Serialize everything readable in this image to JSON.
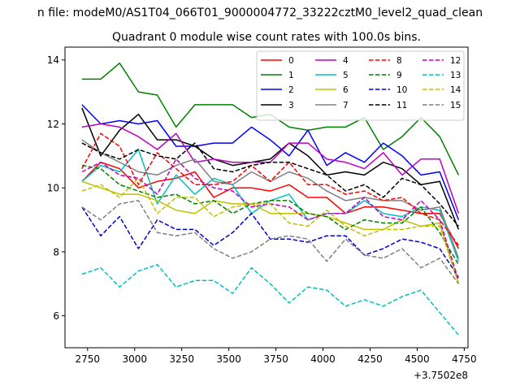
{
  "chart_data": {
    "type": "line",
    "suptitle": "n file: modeM0/AS1T04_066T01_9000004772_33222cztM0_level2_quad_clean",
    "title": "Quadrant 0 module wise count rates with 100.0s bins.",
    "xlabel": "",
    "ylabel": "",
    "x_offset_label": "+3.7502e8",
    "xlim": [
      2630,
      4770
    ],
    "ylim": [
      5.0,
      14.4
    ],
    "xticks": [
      2750,
      3000,
      3250,
      3500,
      3750,
      4000,
      4250,
      4500,
      4750
    ],
    "yticks": [
      6,
      8,
      10,
      12,
      14
    ],
    "grid": false,
    "legend_position": "top-right",
    "x": [
      2720,
      2820,
      2920,
      3020,
      3120,
      3220,
      3320,
      3420,
      3520,
      3620,
      3720,
      3820,
      3920,
      4020,
      4120,
      4220,
      4320,
      4420,
      4520,
      4620,
      4720
    ],
    "series": [
      {
        "name": "0",
        "color": "#ff0000",
        "dash": "solid",
        "values": [
          10.2,
          10.8,
          10.6,
          10.0,
          10.2,
          10.3,
          10.5,
          9.7,
          10.0,
          10.0,
          9.9,
          10.1,
          9.7,
          9.7,
          9.2,
          9.4,
          9.4,
          9.3,
          9.2,
          9.2,
          8.1
        ]
      },
      {
        "name": "1",
        "color": "#008000",
        "dash": "solid",
        "values": [
          13.4,
          13.4,
          13.9,
          13.0,
          12.9,
          11.9,
          12.6,
          12.6,
          12.6,
          12.2,
          12.3,
          11.9,
          11.8,
          11.9,
          11.9,
          12.2,
          11.2,
          11.6,
          12.2,
          11.6,
          10.4
        ]
      },
      {
        "name": "2",
        "color": "#0000ff",
        "dash": "solid",
        "values": [
          12.6,
          12.0,
          12.1,
          12.0,
          12.1,
          11.3,
          11.3,
          11.4,
          11.4,
          11.9,
          11.5,
          11.0,
          11.8,
          10.7,
          11.1,
          10.8,
          11.4,
          11.0,
          10.4,
          10.5,
          9.0
        ]
      },
      {
        "name": "3",
        "color": "#000000",
        "dash": "solid",
        "values": [
          12.5,
          11.0,
          11.8,
          12.3,
          11.5,
          11.5,
          11.3,
          10.9,
          10.7,
          10.8,
          10.9,
          11.4,
          11.0,
          10.4,
          10.5,
          10.4,
          10.8,
          10.6,
          10.1,
          10.2,
          8.7
        ]
      },
      {
        "name": "4",
        "color": "#c000c0",
        "dash": "solid",
        "values": [
          11.9,
          12.0,
          11.9,
          11.6,
          11.2,
          11.7,
          10.8,
          10.9,
          10.8,
          10.8,
          10.8,
          11.4,
          11.4,
          10.9,
          10.8,
          10.6,
          11.1,
          10.4,
          10.9,
          10.9,
          9.2
        ]
      },
      {
        "name": "5",
        "color": "#00c0c0",
        "dash": "solid",
        "values": [
          10.2,
          10.7,
          10.5,
          11.2,
          9.5,
          10.4,
          9.8,
          10.3,
          10.1,
          9.2,
          9.6,
          9.8,
          9.0,
          9.2,
          9.2,
          9.6,
          9.2,
          9.1,
          9.4,
          9.3,
          7.7
        ]
      },
      {
        "name": "6",
        "color": "#c0c000",
        "dash": "solid",
        "values": [
          10.2,
          10.0,
          9.8,
          9.8,
          9.6,
          9.3,
          9.2,
          9.6,
          9.5,
          9.5,
          9.2,
          9.2,
          9.2,
          9.1,
          8.9,
          8.7,
          8.7,
          9.0,
          8.8,
          8.9,
          7.0
        ]
      },
      {
        "name": "7",
        "color": "#808080",
        "dash": "solid",
        "values": [
          11.5,
          11.1,
          10.8,
          10.5,
          10.4,
          10.7,
          10.9,
          10.2,
          10.1,
          10.5,
          10.2,
          10.5,
          10.3,
          9.9,
          9.6,
          9.7,
          9.6,
          9.6,
          9.3,
          9.4,
          7.8
        ]
      },
      {
        "name": "8",
        "color": "#ff0000",
        "dash": "dashed",
        "values": [
          10.6,
          11.7,
          11.3,
          10.1,
          11.1,
          10.6,
          10.1,
          10.1,
          10.2,
          10.7,
          10.2,
          10.8,
          10.1,
          10.1,
          9.8,
          9.9,
          9.6,
          9.7,
          9.2,
          9.0,
          8.2
        ]
      },
      {
        "name": "9",
        "color": "#008000",
        "dash": "dashed",
        "values": [
          10.7,
          10.6,
          10.1,
          9.9,
          9.7,
          9.8,
          9.5,
          9.6,
          9.2,
          9.5,
          9.6,
          9.6,
          9.2,
          9.1,
          8.7,
          9.0,
          8.9,
          8.9,
          9.4,
          8.6,
          7.6
        ]
      },
      {
        "name": "10",
        "color": "#0000cc",
        "dash": "dashed",
        "values": [
          9.4,
          8.5,
          9.1,
          8.1,
          9.0,
          8.7,
          8.7,
          8.2,
          8.6,
          9.2,
          8.4,
          8.4,
          8.3,
          8.5,
          8.5,
          7.9,
          8.1,
          8.4,
          8.3,
          8.1,
          7.2
        ]
      },
      {
        "name": "11",
        "color": "#000000",
        "dash": "dashed",
        "values": [
          11.4,
          11.1,
          10.9,
          11.2,
          11.0,
          10.9,
          11.4,
          10.6,
          10.5,
          10.7,
          10.8,
          10.8,
          10.6,
          10.4,
          9.9,
          10.1,
          9.7,
          10.3,
          10.1,
          9.5,
          8.8
        ]
      },
      {
        "name": "12",
        "color": "#c000c0",
        "dash": "dashed",
        "values": [
          10.5,
          10.8,
          10.4,
          10.3,
          9.8,
          10.9,
          10.3,
          10.0,
          9.9,
          9.4,
          9.5,
          9.4,
          9.0,
          9.2,
          9.2,
          9.7,
          9.1,
          9.0,
          9.6,
          9.0,
          7.1
        ]
      },
      {
        "name": "13",
        "color": "#00c0c0",
        "dash": "dashed",
        "values": [
          7.3,
          7.5,
          6.9,
          7.4,
          7.6,
          6.9,
          7.1,
          7.1,
          6.7,
          7.5,
          7.0,
          6.4,
          6.9,
          6.8,
          6.3,
          6.5,
          6.3,
          6.6,
          6.8,
          6.1,
          5.4
        ]
      },
      {
        "name": "14",
        "color": "#c0c000",
        "dash": "dashed",
        "values": [
          9.9,
          10.1,
          9.7,
          10.3,
          9.2,
          9.7,
          9.7,
          9.1,
          9.4,
          9.5,
          9.5,
          8.9,
          8.8,
          9.3,
          8.8,
          8.5,
          8.7,
          8.7,
          8.8,
          8.8,
          7.0
        ]
      },
      {
        "name": "15",
        "color": "#808080",
        "dash": "dashed",
        "values": [
          9.4,
          9.0,
          9.5,
          9.6,
          8.6,
          8.5,
          8.6,
          8.1,
          7.8,
          8.0,
          8.4,
          8.5,
          8.4,
          7.7,
          8.4,
          7.9,
          7.8,
          8.1,
          7.5,
          7.8,
          7.0
        ]
      }
    ]
  }
}
